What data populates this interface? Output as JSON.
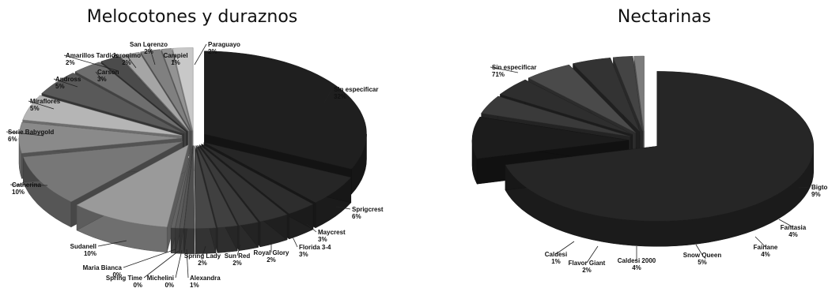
{
  "chart_data": [
    {
      "type": "pie",
      "title": "Melocotones y duraznos",
      "slices": [
        {
          "label": "Sin especificar",
          "value": 32,
          "value_label": "32%"
        },
        {
          "label": "Sprigcrest",
          "value": 6,
          "value_label": "6%"
        },
        {
          "label": "Maycrest",
          "value": 3,
          "value_label": "3%"
        },
        {
          "label": "Florida 3-4",
          "value": 3,
          "value_label": "3%"
        },
        {
          "label": "Royal Glory",
          "value": 2,
          "value_label": "2%"
        },
        {
          "label": "Sun Red",
          "value": 2,
          "value_label": "2%"
        },
        {
          "label": "Spring Lady",
          "value": 2,
          "value_label": "2%"
        },
        {
          "label": "Alexandra",
          "value": 1,
          "value_label": "1%"
        },
        {
          "label": "Michelini",
          "value": 0.4,
          "value_label": "0%"
        },
        {
          "label": "Spring Time",
          "value": 0.4,
          "value_label": "0%"
        },
        {
          "label": "Maria Bianca",
          "value": 0.4,
          "value_label": "0%"
        },
        {
          "label": "Sudanell",
          "value": 10,
          "value_label": "10%"
        },
        {
          "label": "Catherina",
          "value": 10,
          "value_label": "10%"
        },
        {
          "label": "Serie Babygold",
          "value": 6,
          "value_label": "6%"
        },
        {
          "label": "Miraflores",
          "value": 5,
          "value_label": "5%"
        },
        {
          "label": "Andross",
          "value": 5,
          "value_label": "5%"
        },
        {
          "label": "Carson",
          "value": 3,
          "value_label": "3%"
        },
        {
          "label": "Amarillos Tardios",
          "value": 2,
          "value_label": "2%"
        },
        {
          "label": "Jeronimo",
          "value": 2,
          "value_label": "2%"
        },
        {
          "label": "San Lorenzo",
          "value": 2,
          "value_label": "2%"
        },
        {
          "label": "Campiel",
          "value": 1,
          "value_label": "1%"
        },
        {
          "label": "Paraguayo",
          "value": 2,
          "value_label": "2%"
        }
      ]
    },
    {
      "type": "pie",
      "title": "Nectarinas",
      "slices": [
        {
          "label": "Sin especificar",
          "value": 71,
          "value_label": "71%"
        },
        {
          "label": "Bigtop",
          "value": 9,
          "value_label": "9%"
        },
        {
          "label": "Fantasia",
          "value": 4,
          "value_label": "4%"
        },
        {
          "label": "Fairlane",
          "value": 4,
          "value_label": "4%"
        },
        {
          "label": "Snow Queen",
          "value": 5,
          "value_label": "5%"
        },
        {
          "label": "Caldesi 2000",
          "value": 4,
          "value_label": "4%"
        },
        {
          "label": "Flavor Giant",
          "value": 2,
          "value_label": "2%"
        },
        {
          "label": "Caldesi",
          "value": 1,
          "value_label": "1%"
        }
      ]
    }
  ]
}
